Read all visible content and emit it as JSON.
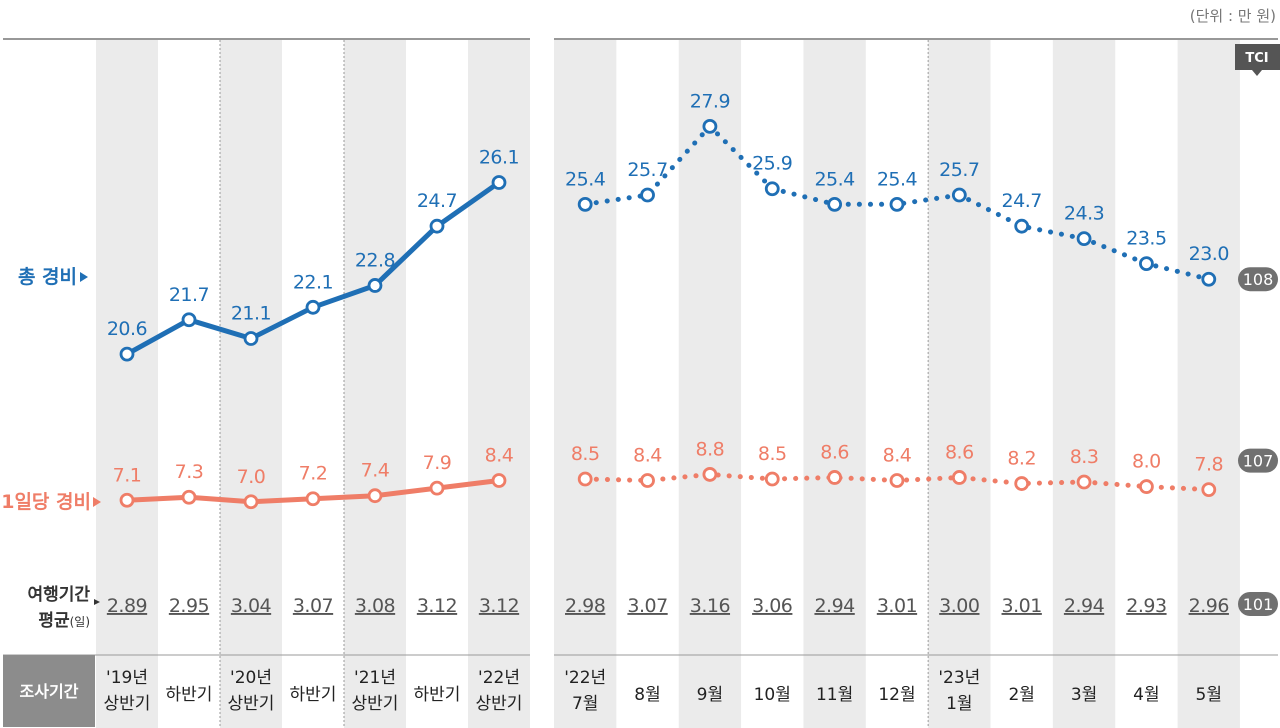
{
  "unit_label": "(단위 : 만 원)",
  "tci_badge": "TCI",
  "row_labels": {
    "total": "총 경비",
    "daily": "1일당 경비",
    "days_line1": "여행기간",
    "days_line2": "평균",
    "days_unit": "(일)",
    "period": "조사기간"
  },
  "badges": {
    "total": "108",
    "daily": "107",
    "days": "101"
  },
  "colors": {
    "total": "#1f6fb5",
    "daily": "#ef7d67",
    "band": "#ebebeb",
    "period_box": "#8c8c8c",
    "badge": "#707070"
  },
  "chart_data": [
    {
      "type": "line",
      "panel": "half-year",
      "categories": [
        [
          "'19년",
          "상반기"
        ],
        [
          "",
          "하반기"
        ],
        [
          "'20년",
          "상반기"
        ],
        [
          "",
          "하반기"
        ],
        [
          "'21년",
          "상반기"
        ],
        [
          "",
          "하반기"
        ],
        [
          "'22년",
          "상반기"
        ]
      ],
      "series": [
        {
          "name": "총 경비",
          "values": [
            20.6,
            21.7,
            21.1,
            22.1,
            22.8,
            24.7,
            26.1
          ],
          "labels": [
            "20.6",
            "21.7",
            "21.1",
            "22.1",
            "22.8",
            "24.7",
            "26.1"
          ]
        },
        {
          "name": "1일당 경비",
          "values": [
            7.1,
            7.3,
            7.0,
            7.2,
            7.4,
            7.9,
            8.4
          ],
          "labels": [
            "7.1",
            "7.3",
            "7.0",
            "7.2",
            "7.4",
            "7.9",
            "8.4"
          ]
        },
        {
          "name": "여행기간 평균",
          "values": [
            2.89,
            2.95,
            3.04,
            3.07,
            3.08,
            3.12,
            3.12
          ],
          "labels": [
            "2.89",
            "2.95",
            "3.04",
            "3.07",
            "3.08",
            "3.12",
            "3.12"
          ]
        }
      ],
      "line_style": "solid"
    },
    {
      "type": "line",
      "panel": "monthly",
      "categories": [
        [
          "'22년",
          "7월"
        ],
        [
          "",
          "8월"
        ],
        [
          "",
          "9월"
        ],
        [
          "",
          "10월"
        ],
        [
          "",
          "11월"
        ],
        [
          "",
          "12월"
        ],
        [
          "'23년",
          "1월"
        ],
        [
          "",
          "2월"
        ],
        [
          "",
          "3월"
        ],
        [
          "",
          "4월"
        ],
        [
          "",
          "5월"
        ]
      ],
      "series": [
        {
          "name": "총 경비",
          "values": [
            25.4,
            25.7,
            27.9,
            25.9,
            25.4,
            25.4,
            25.7,
            24.7,
            24.3,
            23.5,
            23.0
          ],
          "labels": [
            "25.4",
            "25.7",
            "27.9",
            "25.9",
            "25.4",
            "25.4",
            "25.7",
            "24.7",
            "24.3",
            "23.5",
            "23.0"
          ]
        },
        {
          "name": "1일당 경비",
          "values": [
            8.5,
            8.4,
            8.8,
            8.5,
            8.6,
            8.4,
            8.6,
            8.2,
            8.3,
            8.0,
            7.8
          ],
          "labels": [
            "8.5",
            "8.4",
            "8.8",
            "8.5",
            "8.6",
            "8.4",
            "8.6",
            "8.2",
            "8.3",
            "8.0",
            "7.8"
          ]
        },
        {
          "name": "여행기간 평균",
          "values": [
            2.98,
            3.07,
            3.16,
            3.06,
            2.94,
            3.01,
            3.0,
            3.01,
            2.94,
            2.93,
            2.96
          ],
          "labels": [
            "2.98",
            "3.07",
            "3.16",
            "3.06",
            "2.94",
            "3.01",
            "3.00",
            "3.01",
            "2.94",
            "2.93",
            "2.96"
          ]
        }
      ],
      "line_style": "dotted"
    }
  ]
}
